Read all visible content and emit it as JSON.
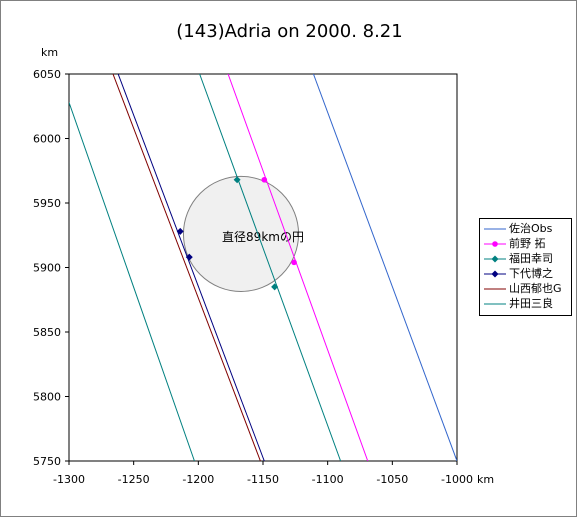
{
  "chart_data": {
    "type": "line",
    "title": "(143)Adria on 2000. 8.21",
    "xlabel": "km",
    "ylabel": "km",
    "xlim": [
      -1300,
      -1000
    ],
    "ylim": [
      5750,
      6050
    ],
    "xticks": [
      -1300,
      -1250,
      -1200,
      -1150,
      -1100,
      -1050,
      -1000
    ],
    "yticks": [
      5750,
      5800,
      5850,
      5900,
      5950,
      6000,
      6050
    ],
    "xtick_labels": [
      "-1300",
      "-1250",
      "-1200",
      "-1150",
      "-1100",
      "-1050",
      "-1000"
    ],
    "ytick_labels": [
      "5750",
      "5800",
      "5850",
      "5900",
      "5950",
      "6000",
      "6050"
    ],
    "grid": false,
    "legend_position": "right",
    "circle": {
      "label": "直径89kmの円",
      "center": [
        -1167,
        5926
      ],
      "radius": 44.5,
      "fill": "#f0f0f0",
      "stroke": "#808080"
    },
    "series": [
      {
        "name": "佐治Obs",
        "color": "#3366cc",
        "marker": "none",
        "line": [
          [
            -1111,
            6050
          ],
          [
            -1000,
            5750
          ]
        ],
        "points": []
      },
      {
        "name": "前野 拓",
        "color": "#ff00ff",
        "marker": "circle",
        "line": [
          [
            -1177,
            6050
          ],
          [
            -1069,
            5750
          ]
        ],
        "points": [
          [
            -1149,
            5968
          ],
          [
            -1126,
            5904
          ]
        ]
      },
      {
        "name": "福田幸司",
        "color": "#008080",
        "marker": "diamond",
        "line": [
          [
            -1199,
            6050
          ],
          [
            -1090,
            5750
          ]
        ],
        "points": [
          [
            -1170,
            5968
          ],
          [
            -1141,
            5885
          ]
        ]
      },
      {
        "name": "下代博之",
        "color": "#000080",
        "marker": "diamond",
        "line": [
          [
            -1262,
            6050
          ],
          [
            -1149,
            5750
          ]
        ],
        "points": [
          [
            -1214,
            5928
          ],
          [
            -1207,
            5908
          ]
        ]
      },
      {
        "name": "山西郁也G",
        "color": "#800000",
        "marker": "none",
        "line": [
          [
            -1266,
            6050
          ],
          [
            -1152,
            5750
          ]
        ],
        "points": []
      },
      {
        "name": "井田三良",
        "color": "#008080",
        "marker": "none",
        "line": [
          [
            -1300,
            6028
          ],
          [
            -1203,
            5750
          ]
        ],
        "points": []
      }
    ]
  }
}
